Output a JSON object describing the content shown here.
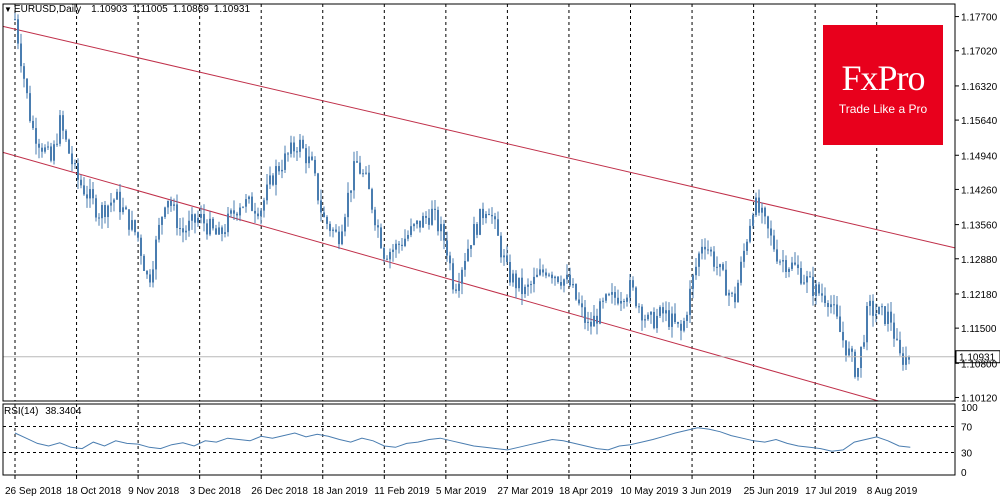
{
  "header": {
    "symbol_label": "EURUSD,Daily",
    "open": "1.10903",
    "high": "1.11005",
    "low": "1.10869",
    "close": "1.10931"
  },
  "logo": {
    "brand": "FxPro",
    "tagline": "Trade Like a Pro"
  },
  "rsi_header": {
    "label": "RSI(14)",
    "value": "38.3404"
  },
  "colors": {
    "candle": "#4a7db0",
    "channel": "#c0304a",
    "grid": "#000000",
    "logo_bg": "#e8001c"
  },
  "chart_data": [
    {
      "type": "candlestick",
      "title": "EURUSD,Daily",
      "x_tick_labels": [
        "26 Sep 2018",
        "18 Oct 2018",
        "9 Nov 2018",
        "3 Dec 2018",
        "26 Dec 2018",
        "18 Jan 2019",
        "11 Feb 2019",
        "5 Mar 2019",
        "27 Mar 2019",
        "18 Apr 2019",
        "10 May 2019",
        "3 Jun 2019",
        "25 Jun 2019",
        "17 Jul 2019",
        "8 Aug 2019"
      ],
      "y_tick_labels": [
        "1.17700",
        "1.17020",
        "1.16320",
        "1.15640",
        "1.14940",
        "1.14260",
        "1.13560",
        "1.12880",
        "1.12180",
        "1.11500",
        "1.10800",
        "1.10120"
      ],
      "ylim": [
        1.1005,
        1.1795
      ],
      "current_price": "1.10931",
      "grid": true,
      "channel": {
        "upper": {
          "start": [
            "26 Sep 2018",
            1.1745
          ],
          "end": [
            "8 Aug 2019",
            1.1346
          ]
        },
        "lower": {
          "start": [
            "26 Sep 2018",
            1.1493
          ],
          "end": [
            "8 Aug 2019",
            1.1006
          ]
        }
      },
      "close_path": [
        [
          "26 Sep 2018",
          1.1765
        ],
        [
          "2 Oct 2018",
          1.155
        ],
        [
          "9 Oct 2018",
          1.148
        ],
        [
          "12 Oct 2018",
          1.156
        ],
        [
          "18 Oct 2018",
          1.145
        ],
        [
          "26 Oct 2018",
          1.138
        ],
        [
          "1 Nov 2018",
          1.141
        ],
        [
          "9 Nov 2018",
          1.133
        ],
        [
          "13 Nov 2018",
          1.124
        ],
        [
          "20 Nov 2018",
          1.142
        ],
        [
          "26 Nov 2018",
          1.134
        ],
        [
          "3 Dec 2018",
          1.137
        ],
        [
          "10 Dec 2018",
          1.133
        ],
        [
          "18 Dec 2018",
          1.14
        ],
        [
          "26 Dec 2018",
          1.139
        ],
        [
          "31 Dec 2018",
          1.146
        ],
        [
          "9 Jan 2019",
          1.152
        ],
        [
          "14 Jan 2019",
          1.147
        ],
        [
          "18 Jan 2019",
          1.137
        ],
        [
          "24 Jan 2019",
          1.133
        ],
        [
          "31 Jan 2019",
          1.148
        ],
        [
          "4 Feb 2019",
          1.144
        ],
        [
          "11 Feb 2019",
          1.13
        ],
        [
          "15 Feb 2019",
          1.131
        ],
        [
          "22 Feb 2019",
          1.135
        ],
        [
          "28 Feb 2019",
          1.138
        ],
        [
          "5 Mar 2019",
          1.132
        ],
        [
          "8 Mar 2019",
          1.123
        ],
        [
          "14 Mar 2019",
          1.133
        ],
        [
          "20 Mar 2019",
          1.14
        ],
        [
          "27 Mar 2019",
          1.126
        ],
        [
          "2 Apr 2019",
          1.122
        ],
        [
          "10 Apr 2019",
          1.127
        ],
        [
          "18 Apr 2019",
          1.124
        ],
        [
          "25 Apr 2019",
          1.115
        ],
        [
          "1 May 2019",
          1.12
        ],
        [
          "10 May 2019",
          1.123
        ],
        [
          "17 May 2019",
          1.116
        ],
        [
          "23 May 2019",
          1.118
        ],
        [
          "30 May 2019",
          1.114
        ],
        [
          "3 Jun 2019",
          1.124
        ],
        [
          "7 Jun 2019",
          1.133
        ],
        [
          "13 Jun 2019",
          1.126
        ],
        [
          "18 Jun 2019",
          1.12
        ],
        [
          "25 Jun 2019",
          1.14
        ],
        [
          "28 Jun 2019",
          1.137
        ],
        [
          "4 Jul 2019",
          1.129
        ],
        [
          "10 Jul 2019",
          1.127
        ],
        [
          "17 Jul 2019",
          1.1225
        ],
        [
          "22 Jul 2019",
          1.121
        ],
        [
          "26 Jul 2019",
          1.114
        ],
        [
          "1 Aug 2019",
          1.106
        ],
        [
          "5 Aug 2019",
          1.119
        ],
        [
          "8 Aug 2019",
          1.118
        ],
        [
          "13 Aug 2019",
          1.117
        ],
        [
          "16 Aug 2019",
          1.109
        ],
        [
          "20 Aug 2019",
          1.1093
        ]
      ]
    },
    {
      "type": "line",
      "title": "RSI(14) 38.3404",
      "y_tick_labels": [
        "100",
        "70",
        "30",
        "0"
      ],
      "ylim": [
        0,
        100
      ],
      "levels": [
        70,
        30
      ],
      "current_value": 38.3404,
      "series": [
        {
          "x_tick_labels_shared": true,
          "values": [
            60,
            52,
            44,
            40,
            45,
            38,
            36,
            46,
            40,
            48,
            44,
            43,
            38,
            36,
            42,
            45,
            40,
            48,
            46,
            52,
            50,
            48,
            55,
            52,
            56,
            60,
            54,
            58,
            55,
            50,
            46,
            52,
            48,
            40,
            38,
            44,
            46,
            50,
            52,
            48,
            44,
            40,
            38,
            36,
            34,
            38,
            42,
            46,
            50,
            48,
            44,
            40,
            36,
            34,
            40,
            42,
            46,
            50,
            55,
            60,
            64,
            68,
            66,
            62,
            56,
            52,
            48,
            46,
            50,
            44,
            40,
            38,
            36,
            32,
            34,
            46,
            50,
            54,
            48,
            40,
            38
          ]
        }
      ]
    }
  ]
}
